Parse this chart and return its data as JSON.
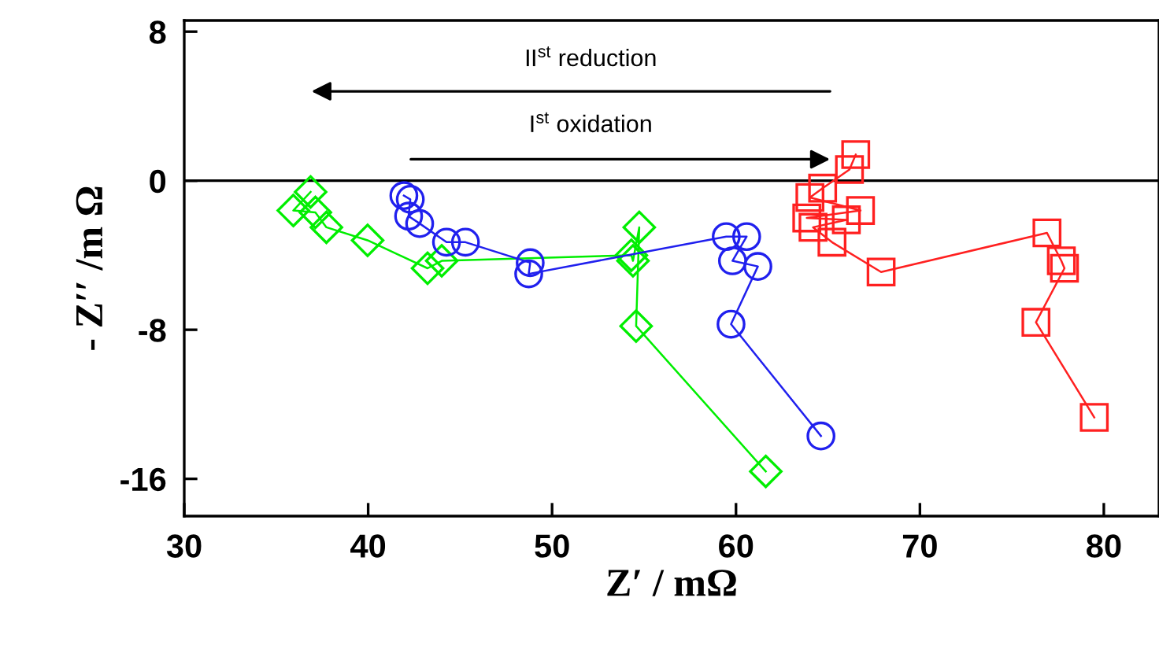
{
  "chart_data": {
    "type": "line",
    "xlabel": "Z′ / mΩ",
    "ylabel": "- Z′′ /m Ω",
    "xlim": [
      30,
      83
    ],
    "ylim": [
      -18,
      8.6
    ],
    "xticks": [
      30,
      40,
      50,
      60,
      70,
      80
    ],
    "yticks": [
      -16,
      -8,
      0,
      8
    ],
    "grid": false,
    "legend": false,
    "ref_lines": [
      {
        "axis": "y",
        "value": 0,
        "color": "#000000",
        "line_style": "solid"
      }
    ],
    "annotations": [
      "II$^{st}$ reduction",
      "I$^{st}$ oxidation"
    ],
    "series": [
      {
        "color": "#00ee00",
        "marker": "diamond",
        "x": [
          36.87,
          35.93,
          37.13,
          37.73,
          39.97,
          43.23,
          44.0,
          54.31,
          54.4,
          54.74,
          54.57,
          61.62
        ],
        "values": [
          -0.6,
          -1.6,
          -1.7,
          -2.5,
          -3.2,
          -4.7,
          -4.3,
          -4.0,
          -4.3,
          -2.5,
          -7.8,
          -15.6
        ]
      },
      {
        "color": "#2020ee",
        "marker": "circle",
        "x": [
          41.94,
          42.29,
          42.2,
          42.8,
          44.26,
          45.29,
          48.81,
          48.73,
          59.47,
          60.58,
          59.81,
          61.19,
          59.73,
          64.62
        ],
        "values": [
          -0.8,
          -1.0,
          -1.9,
          -2.3,
          -3.3,
          -3.3,
          -4.4,
          -5.0,
          -3.0,
          -3.0,
          -4.3,
          -4.6,
          -7.7,
          -13.7
        ]
      },
      {
        "color": "#ff2020",
        "marker": "square",
        "x": [
          66.51,
          66.17,
          64.71,
          64.02,
          66.77,
          63.85,
          66.0,
          64.19,
          65.22,
          67.89,
          76.91,
          77.69,
          77.86,
          76.31,
          79.48
        ],
        "values": [
          1.4,
          0.6,
          -0.4,
          -0.9,
          -1.6,
          -2.0,
          -2.1,
          -2.5,
          -3.3,
          -4.9,
          -2.8,
          -4.3,
          -4.7,
          -7.6,
          -12.7
        ]
      }
    ]
  }
}
